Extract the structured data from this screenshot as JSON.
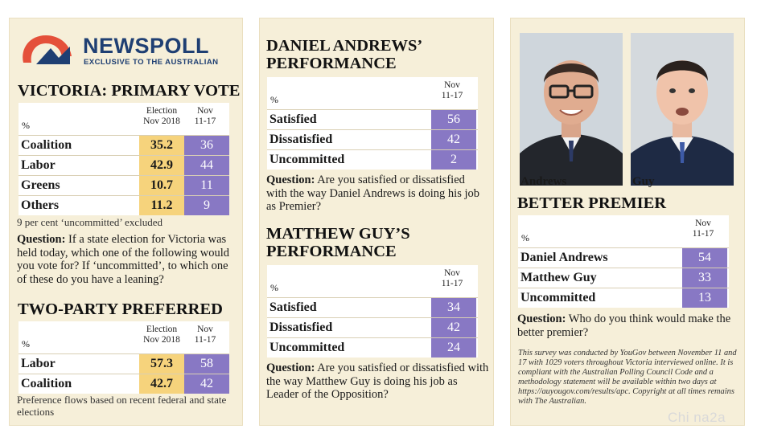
{
  "logo": {
    "brand": "NEWSPOLL",
    "tagline": "EXCLUSIVE TO THE AUSTRALIAN"
  },
  "primary_vote": {
    "title": "VICTORIA: PRIMARY VOTE",
    "pct": "%",
    "col1": [
      "Election",
      "Nov 2018"
    ],
    "col2": [
      "Nov",
      "11-17"
    ],
    "rows": [
      {
        "label": "Coalition",
        "v1": "35.2",
        "v2": "36"
      },
      {
        "label": "Labor",
        "v1": "42.9",
        "v2": "44"
      },
      {
        "label": "Greens",
        "v1": "10.7",
        "v2": "11"
      },
      {
        "label": "Others",
        "v1": "11.2",
        "v2": "9"
      }
    ],
    "note": "9 per cent ‘uncommitted’ excluded",
    "question_label": "Question:",
    "question": " If a state election for Victoria was held today, which one of the following would you vote for? If ‘uncommitted’, to which one of these do you have a leaning?"
  },
  "two_party": {
    "title": "TWO-PARTY PREFERRED",
    "pct": "%",
    "col1": [
      "Election",
      "Nov 2018"
    ],
    "col2": [
      "Nov",
      "11-17"
    ],
    "rows": [
      {
        "label": "Labor",
        "v1": "57.3",
        "v2": "58"
      },
      {
        "label": "Coalition",
        "v1": "42.7",
        "v2": "42"
      }
    ],
    "note": "Preference flows based on recent federal and state elections"
  },
  "andrews_perf": {
    "title": [
      "DANIEL ANDREWS’",
      "PERFORMANCE"
    ],
    "pct": "%",
    "col": [
      "Nov",
      "11-17"
    ],
    "rows": [
      {
        "label": "Satisfied",
        "v": "56"
      },
      {
        "label": "Dissatisfied",
        "v": "42"
      },
      {
        "label": "Uncommitted",
        "v": "2"
      }
    ],
    "question_label": "Question:",
    "question": " Are you satisfied or dissatisfied with the way Daniel Andrews is doing his job as Premier?"
  },
  "guy_perf": {
    "title": [
      "MATTHEW GUY’S",
      "PERFORMANCE"
    ],
    "pct": "%",
    "col": [
      "Nov",
      "11-17"
    ],
    "rows": [
      {
        "label": "Satisfied",
        "v": "34"
      },
      {
        "label": "Dissatisfied",
        "v": "42"
      },
      {
        "label": "Uncommitted",
        "v": "24"
      }
    ],
    "question_label": "Question:",
    "question": " Are you satisfied or dissatisfied with the way Matthew Guy is doing his job as Leader of the Opposition?"
  },
  "better_premier": {
    "photo_captions": [
      "Andrews",
      "Guy"
    ],
    "title": "BETTER PREMIER",
    "pct": "%",
    "col": [
      "Nov",
      "11-17"
    ],
    "rows": [
      {
        "label": "Daniel Andrews",
        "v": "54"
      },
      {
        "label": "Matthew Guy",
        "v": "33"
      },
      {
        "label": "Uncommitted",
        "v": "13"
      }
    ],
    "question_label": "Question:",
    "question": " Who do you think would make the better premier?",
    "methodology": "This survey was conducted by YouGov between November 11 and 17 with 1029 voters throughout Victoria interviewed online. It is compliant with the Australian Polling Council Code and a methodology statement will be available within two days at https://auyougov.com/results/apc. Copyright at all times remains with The Australian."
  },
  "watermark": "Chi na2a",
  "colors": {
    "panel": "#f6efd9",
    "election_col": "#f6d37c",
    "latest_col": "#8878c4",
    "logo": "#1f3f73",
    "logo_mark": "#e4503a"
  },
  "chart_data": [
    {
      "type": "table",
      "title": "VICTORIA: PRIMARY VOTE",
      "categories": [
        "Coalition",
        "Labor",
        "Greens",
        "Others"
      ],
      "series": [
        {
          "name": "Election Nov 2018",
          "values": [
            35.2,
            42.9,
            10.7,
            11.2
          ]
        },
        {
          "name": "Nov 11-17",
          "values": [
            36,
            44,
            11,
            9
          ]
        }
      ]
    },
    {
      "type": "table",
      "title": "TWO-PARTY PREFERRED",
      "categories": [
        "Labor",
        "Coalition"
      ],
      "series": [
        {
          "name": "Election Nov 2018",
          "values": [
            57.3,
            42.7
          ]
        },
        {
          "name": "Nov 11-17",
          "values": [
            58,
            42
          ]
        }
      ]
    },
    {
      "type": "table",
      "title": "DANIEL ANDREWS’ PERFORMANCE",
      "categories": [
        "Satisfied",
        "Dissatisfied",
        "Uncommitted"
      ],
      "series": [
        {
          "name": "Nov 11-17",
          "values": [
            56,
            42,
            2
          ]
        }
      ]
    },
    {
      "type": "table",
      "title": "MATTHEW GUY’S PERFORMANCE",
      "categories": [
        "Satisfied",
        "Dissatisfied",
        "Uncommitted"
      ],
      "series": [
        {
          "name": "Nov 11-17",
          "values": [
            34,
            42,
            24
          ]
        }
      ]
    },
    {
      "type": "table",
      "title": "BETTER PREMIER",
      "categories": [
        "Daniel Andrews",
        "Matthew Guy",
        "Uncommitted"
      ],
      "series": [
        {
          "name": "Nov 11-17",
          "values": [
            54,
            33,
            13
          ]
        }
      ]
    }
  ]
}
